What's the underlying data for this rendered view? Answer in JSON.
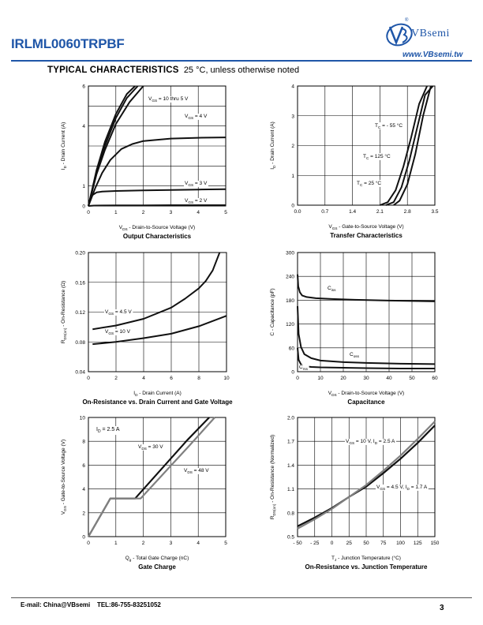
{
  "header": {
    "part_number": "IRLML0060TRPBF",
    "logo_text": "VBsemi",
    "logo_reg": "®",
    "website": "www.VBsemi.tw"
  },
  "section": {
    "title": "TYPICAL CHARACTERISTICS",
    "subtitle": "25 °C, unless otherwise noted"
  },
  "footer": {
    "email": "E-mail:  China@VBsemi",
    "tel": "TEL:86-755-83251052",
    "page": "3"
  },
  "chart_data": [
    {
      "id": "output",
      "type": "line",
      "title": "Output Characteristics",
      "xlabel": "V_DS - Drain-to-Source Voltage (V)",
      "ylabel": "I_D - Drain Current (A)",
      "xlim": [
        0,
        5
      ],
      "ylim": [
        0,
        6
      ],
      "xticks": [
        0,
        1,
        2,
        3,
        4,
        5
      ],
      "yticks": [
        0,
        1,
        2,
        3,
        4,
        5,
        6
      ],
      "ytick_labels": [
        "0",
        "1",
        "",
        "",
        "4",
        "",
        "6"
      ],
      "grid": true,
      "series": [
        {
          "name": "V_GS = 10 thru 5 V",
          "x": [
            0,
            0.3,
            0.6,
            1.0,
            1.4,
            1.7
          ],
          "y": [
            0,
            1.8,
            3.2,
            4.6,
            5.6,
            6.0
          ]
        },
        {
          "name": "",
          "x": [
            0,
            0.3,
            0.6,
            1.0,
            1.4,
            1.8
          ],
          "y": [
            0,
            1.7,
            3.0,
            4.4,
            5.4,
            6.0
          ]
        },
        {
          "name": "",
          "x": [
            0,
            0.3,
            0.6,
            1.0,
            1.5,
            2.0
          ],
          "y": [
            0,
            1.6,
            2.8,
            4.1,
            5.2,
            6.0
          ]
        },
        {
          "name": "V_GS = 4 V",
          "x": [
            0,
            0.25,
            0.5,
            0.8,
            1.2,
            1.6,
            2.0,
            3.0,
            4.0,
            5.0
          ],
          "y": [
            0,
            0.9,
            1.65,
            2.3,
            2.85,
            3.1,
            3.25,
            3.37,
            3.41,
            3.43
          ]
        },
        {
          "name": "V_GS = 3 V",
          "x": [
            0,
            0.1,
            0.3,
            0.5,
            1.0,
            2.0,
            3.0,
            4.0,
            5.0
          ],
          "y": [
            0,
            0.5,
            0.68,
            0.72,
            0.75,
            0.78,
            0.8,
            0.82,
            0.84
          ]
        },
        {
          "name": "V_GS = 2 V",
          "x": [
            0,
            0.2,
            1.0,
            2.0,
            3.0,
            4.0,
            5.0
          ],
          "y": [
            0,
            0.02,
            0.03,
            0.03,
            0.04,
            0.04,
            0.04
          ]
        }
      ]
    },
    {
      "id": "transfer",
      "type": "line",
      "title": "Transfer Characteristics",
      "xlabel": "V_GS - Gate-to-Source Voltage (V)",
      "ylabel": "I_D - Drain Current (A)",
      "xlim": [
        0,
        3.5
      ],
      "ylim": [
        0,
        4
      ],
      "xticks": [
        0,
        0.7,
        1.4,
        2.1,
        2.8,
        3.5
      ],
      "xtick_labels": [
        "0.0",
        "0.7",
        "1.4",
        "2.1",
        "2.8",
        "3.5"
      ],
      "yticks": [
        0,
        1,
        2,
        3,
        4
      ],
      "grid": true,
      "series": [
        {
          "name": "T_C = - 55 °C",
          "x": [
            2.45,
            2.6,
            2.8,
            3.0,
            3.2,
            3.4
          ],
          "y": [
            0,
            0.15,
            0.7,
            1.7,
            3.0,
            4.0
          ]
        },
        {
          "name": "T_C = 125 °C",
          "x": [
            2.1,
            2.3,
            2.5,
            2.7,
            2.9,
            3.1,
            3.3
          ],
          "y": [
            0,
            0.1,
            0.5,
            1.3,
            2.3,
            3.4,
            4.0
          ]
        },
        {
          "name": "T_C = 25 °C",
          "x": [
            2.25,
            2.45,
            2.65,
            2.85,
            3.05,
            3.25,
            3.45
          ],
          "y": [
            0,
            0.1,
            0.6,
            1.5,
            2.6,
            3.7,
            4.0
          ]
        }
      ]
    },
    {
      "id": "ron_id",
      "type": "line",
      "title": "On-Resistance vs. Drain Current and Gate Voltage",
      "xlabel": "I_D - Drain Current (A)",
      "ylabel": "R_DS(on) - On-Resistance (Ω)",
      "xlim": [
        0,
        10
      ],
      "ylim": [
        0.04,
        0.2
      ],
      "xticks": [
        0,
        2,
        4,
        6,
        8,
        10
      ],
      "yticks": [
        0.04,
        0.08,
        0.12,
        0.16,
        0.2
      ],
      "ytick_labels": [
        "0.04",
        "0.08",
        "0.12",
        "0.16",
        "0.20"
      ],
      "grid": true,
      "series": [
        {
          "name": "V_GS = 4.5 V",
          "x": [
            0.3,
            2,
            4,
            6,
            7,
            8,
            8.5,
            9,
            9.5
          ],
          "y": [
            0.097,
            0.102,
            0.111,
            0.126,
            0.138,
            0.152,
            0.162,
            0.176,
            0.2
          ]
        },
        {
          "name": "V_GS = 10 V",
          "x": [
            0.3,
            2,
            4,
            6,
            8,
            10
          ],
          "y": [
            0.077,
            0.08,
            0.085,
            0.091,
            0.101,
            0.115
          ]
        }
      ]
    },
    {
      "id": "capacitance",
      "type": "line",
      "title": "Capacitance",
      "xlabel": "V_DS - Drain-to-Source Voltage (V)",
      "ylabel": "C - Capacitance (pF)",
      "xlim": [
        0,
        60
      ],
      "ylim": [
        0,
        300
      ],
      "xticks": [
        0,
        10,
        20,
        30,
        40,
        50,
        60
      ],
      "yticks": [
        0,
        60,
        120,
        180,
        240,
        300
      ],
      "grid": true,
      "series": [
        {
          "name": "C_iss",
          "x": [
            0,
            0.3,
            1,
            2,
            4,
            8,
            15,
            25,
            40,
            60
          ],
          "y": [
            245,
            215,
            200,
            192,
            188,
            185,
            183,
            181,
            179,
            177
          ]
        },
        {
          "name": "C_oss",
          "x": [
            0,
            0.5,
            1.5,
            3,
            6,
            10,
            20,
            30,
            45,
            60
          ],
          "y": [
            165,
            95,
            62,
            44,
            34,
            28,
            24,
            22,
            20,
            19
          ]
        },
        {
          "name": "C_rss",
          "x": [
            0,
            0.5,
            1.5,
            3,
            6,
            10,
            20,
            30,
            45,
            60
          ],
          "y": [
            60,
            30,
            18,
            14,
            12,
            11,
            10,
            9,
            8,
            8
          ]
        }
      ]
    },
    {
      "id": "gate_charge",
      "type": "line",
      "title": "Gate Charge",
      "xlabel": "Q_g - Total Gate Charge (nC)",
      "ylabel": "V_GS - Gate-to-Source Voltage (V)",
      "annotation": "I_D = 2.5 A",
      "xlim": [
        0,
        5
      ],
      "ylim": [
        0,
        10
      ],
      "xticks": [
        0,
        1,
        2,
        3,
        4,
        5
      ],
      "yticks": [
        0,
        2,
        4,
        6,
        8,
        10
      ],
      "grid": true,
      "series": [
        {
          "name": "V_DS = 30 V",
          "x": [
            0,
            0.8,
            1.7,
            3.6,
            4.4
          ],
          "y": [
            0,
            3.2,
            3.2,
            8.1,
            10
          ]
        },
        {
          "name": "V_DS = 48 V",
          "x": [
            0,
            0.8,
            1.9,
            3.7,
            4.6
          ],
          "y": [
            0,
            3.2,
            3.2,
            7.7,
            10
          ]
        }
      ]
    },
    {
      "id": "ron_temp",
      "type": "line",
      "title": "On-Resistance vs. Junction Temperature",
      "xlabel": "T_J - Junction Temperature (°C)",
      "ylabel": "R_DS(on) - On-Resistance (Normalized)",
      "xlim": [
        -50,
        150
      ],
      "ylim": [
        0.5,
        2.0
      ],
      "xticks": [
        -50,
        -25,
        0,
        25,
        50,
        75,
        100,
        125,
        150
      ],
      "xtick_labels": [
        "- 50",
        "- 25",
        "0",
        "25",
        "50",
        "75",
        "100",
        "125",
        "150"
      ],
      "yticks": [
        0.5,
        0.8,
        1.1,
        1.4,
        1.7,
        2.0
      ],
      "ytick_labels": [
        "0.5",
        "0.8",
        "1.1",
        "1.4",
        "1.7",
        "2.0"
      ],
      "grid": true,
      "series": [
        {
          "name": "V_GS = 10 V, I_D = 2.5 A",
          "x": [
            -50,
            -25,
            0,
            25,
            50,
            75,
            100,
            125,
            150
          ],
          "y": [
            0.63,
            0.74,
            0.86,
            1.0,
            1.13,
            1.3,
            1.48,
            1.68,
            1.9
          ]
        },
        {
          "name": "V_GS = 4.5 V, I_D = 1.7 A",
          "x": [
            -50,
            -25,
            0,
            25,
            50,
            75,
            100,
            125,
            150
          ],
          "y": [
            0.6,
            0.72,
            0.85,
            1.0,
            1.15,
            1.33,
            1.52,
            1.73,
            1.95
          ]
        }
      ]
    }
  ]
}
